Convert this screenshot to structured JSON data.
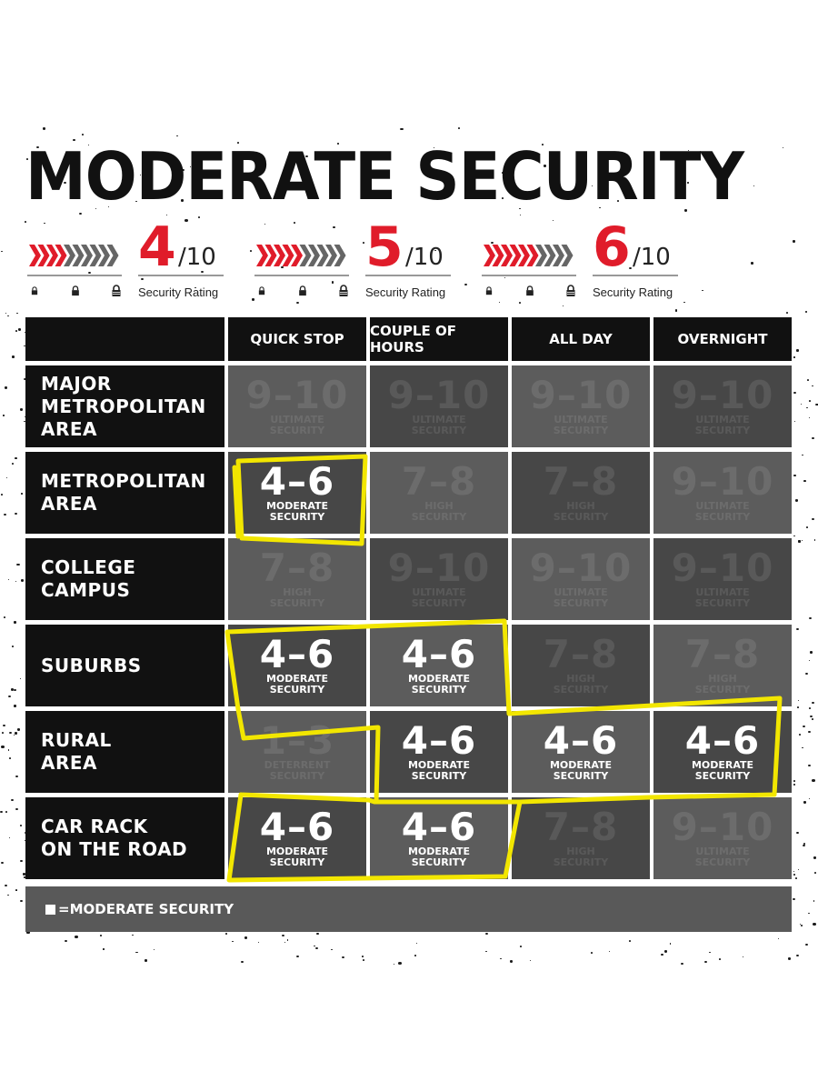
{
  "title": "MODERATE SECURITY",
  "ratings": [
    {
      "value": "4",
      "out_of": "/10",
      "label": "Security Rating",
      "red_arrows": 4
    },
    {
      "value": "5",
      "out_of": "/10",
      "label": "Security Rating",
      "red_arrows": 5
    },
    {
      "value": "6",
      "out_of": "/10",
      "label": "Security Rating",
      "red_arrows": 6
    }
  ],
  "columns": [
    "QUICK STOP",
    "COUPLE OF HOURS",
    "ALL DAY",
    "OVERNIGHT"
  ],
  "rows": [
    {
      "label": "MAJOR\nMETROPOLITAN\nAREA",
      "cells": [
        {
          "value": "9–10",
          "caption": "ULTIMATE\nSECURITY",
          "highlight": false
        },
        {
          "value": "9–10",
          "caption": "ULTIMATE\nSECURITY",
          "highlight": false
        },
        {
          "value": "9–10",
          "caption": "ULTIMATE\nSECURITY",
          "highlight": false
        },
        {
          "value": "9–10",
          "caption": "ULTIMATE\nSECURITY",
          "highlight": false
        }
      ]
    },
    {
      "label": "METROPOLITAN\nAREA",
      "cells": [
        {
          "value": "4–6",
          "caption": "MODERATE\nSECURITY",
          "highlight": true
        },
        {
          "value": "7–8",
          "caption": "HIGH\nSECURITY",
          "highlight": false
        },
        {
          "value": "7–8",
          "caption": "HIGH\nSECURITY",
          "highlight": false
        },
        {
          "value": "9–10",
          "caption": "ULTIMATE\nSECURITY",
          "highlight": false
        }
      ]
    },
    {
      "label": "COLLEGE\nCAMPUS",
      "cells": [
        {
          "value": "7–8",
          "caption": "HIGH\nSECURITY",
          "highlight": false
        },
        {
          "value": "9–10",
          "caption": "ULTIMATE\nSECURITY",
          "highlight": false
        },
        {
          "value": "9–10",
          "caption": "ULTIMATE\nSECURITY",
          "highlight": false
        },
        {
          "value": "9–10",
          "caption": "ULTIMATE\nSECURITY",
          "highlight": false
        }
      ]
    },
    {
      "label": "SUBURBS",
      "cells": [
        {
          "value": "4–6",
          "caption": "MODERATE\nSECURITY",
          "highlight": true
        },
        {
          "value": "4–6",
          "caption": "MODERATE\nSECURITY",
          "highlight": true
        },
        {
          "value": "7–8",
          "caption": "HIGH\nSECURITY",
          "highlight": false
        },
        {
          "value": "7–8",
          "caption": "HIGH\nSECURITY",
          "highlight": false
        }
      ]
    },
    {
      "label": "RURAL\nAREA",
      "cells": [
        {
          "value": "1–3",
          "caption": "DETERRENT\nSECURITY",
          "highlight": false
        },
        {
          "value": "4–6",
          "caption": "MODERATE\nSECURITY",
          "highlight": true
        },
        {
          "value": "4–6",
          "caption": "MODERATE\nSECURITY",
          "highlight": true
        },
        {
          "value": "4–6",
          "caption": "MODERATE\nSECURITY",
          "highlight": true
        }
      ]
    },
    {
      "label": "CAR RACK\nON THE ROAD",
      "cells": [
        {
          "value": "4–6",
          "caption": "MODERATE\nSECURITY",
          "highlight": true
        },
        {
          "value": "4–6",
          "caption": "MODERATE\nSECURITY",
          "highlight": true
        },
        {
          "value": "7–8",
          "caption": "HIGH\nSECURITY",
          "highlight": false
        },
        {
          "value": "9–10",
          "caption": "ULTIMATE\nSECURITY",
          "highlight": false
        }
      ]
    }
  ],
  "legend": "=MODERATE SECURITY",
  "colors": {
    "accent_red": "#e01c2a",
    "arrow_grey": "#666666",
    "highlight_yellow": "#f2e600",
    "header_black": "#111111",
    "cell_light": "#5c5c5c",
    "cell_dark": "#474747"
  },
  "icons": [
    "small-lock-icon",
    "medium-lock-icon",
    "large-lock-icon",
    "chevron-arrow-icon"
  ]
}
